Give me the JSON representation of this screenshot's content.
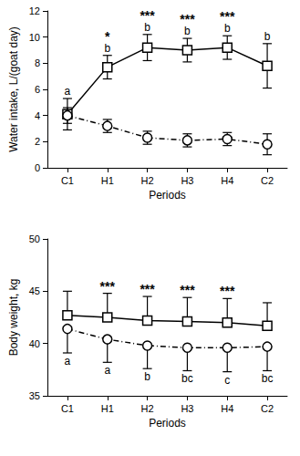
{
  "chart_data": [
    {
      "type": "line",
      "x_label": "Periods",
      "y_label": "Water intake, L/(goat day)",
      "categories": [
        "C1",
        "H1",
        "H2",
        "H3",
        "H4",
        "C2"
      ],
      "ylim": [
        0,
        12
      ],
      "yticks": [
        0,
        2,
        4,
        6,
        8,
        10,
        12
      ],
      "grid": false,
      "significance": [
        null,
        "*",
        "***",
        "***",
        "***",
        null
      ],
      "series": [
        {
          "color": "#000000",
          "marker": "square",
          "line_style": "solid",
          "values": [
            4.1,
            7.7,
            9.2,
            9.0,
            9.2,
            7.8
          ],
          "error_plus": [
            1.2,
            0.9,
            1.0,
            0.9,
            0.9,
            1.7
          ],
          "error_minus": [
            1.2,
            0.9,
            1.0,
            0.9,
            0.9,
            1.7
          ],
          "letters": [
            "a",
            "b",
            "b",
            "b",
            "b",
            "b"
          ]
        },
        {
          "color": "#000000",
          "marker": "circle",
          "line_style": "dashed",
          "values": [
            4.0,
            3.2,
            2.3,
            2.1,
            2.2,
            1.8
          ],
          "error_plus": [
            0.6,
            0.5,
            0.5,
            0.5,
            0.5,
            0.8
          ],
          "error_minus": [
            0.6,
            0.5,
            0.5,
            0.5,
            0.5,
            0.8
          ]
        }
      ]
    },
    {
      "type": "line",
      "x_label": "Periods",
      "y_label": "Body weight, kg",
      "categories": [
        "C1",
        "H1",
        "H2",
        "H3",
        "H4",
        "C2"
      ],
      "ylim": [
        35,
        50
      ],
      "yticks": [
        35,
        40,
        45,
        50
      ],
      "grid": false,
      "significance": [
        null,
        "***",
        "***",
        "***",
        "***",
        null
      ],
      "series": [
        {
          "color": "#000000",
          "marker": "square",
          "line_style": "solid",
          "values": [
            42.7,
            42.5,
            42.2,
            42.1,
            42.0,
            41.7
          ],
          "error_plus": [
            2.3,
            2.3,
            2.3,
            2.3,
            2.3,
            2.2
          ]
        },
        {
          "color": "#000000",
          "marker": "circle",
          "line_style": "dashed",
          "values": [
            41.4,
            40.4,
            39.8,
            39.6,
            39.6,
            39.7
          ],
          "error_minus": [
            2.3,
            2.2,
            2.2,
            2.2,
            2.3,
            2.3
          ],
          "letters": [
            "a",
            "a",
            "b",
            "bc",
            "c",
            "bc"
          ]
        }
      ]
    }
  ]
}
